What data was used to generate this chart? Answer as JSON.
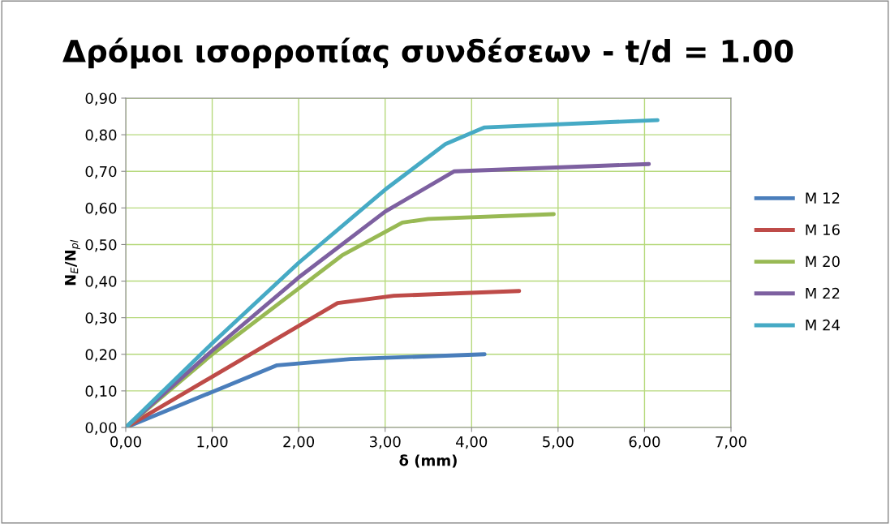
{
  "chart_data": {
    "type": "line",
    "title": "Δρόμοι ισορροπίας συνδέσεων - t/d = 1.00",
    "xlabel": "δ (mm)",
    "ylabel": "N$_{E}$/N$_{pl}$",
    "xlim": [
      0,
      7
    ],
    "ylim": [
      0,
      0.9
    ],
    "xticks": [
      {
        "value": 0,
        "label": "0,00"
      },
      {
        "value": 1,
        "label": "1,00"
      },
      {
        "value": 2,
        "label": "2,00"
      },
      {
        "value": 3,
        "label": "3,00"
      },
      {
        "value": 4,
        "label": "4,00"
      },
      {
        "value": 5,
        "label": "5,00"
      },
      {
        "value": 6,
        "label": "6,00"
      },
      {
        "value": 7,
        "label": "7,00"
      }
    ],
    "yticks": [
      {
        "value": 0,
        "label": "0,00"
      },
      {
        "value": 0.1,
        "label": "0,10"
      },
      {
        "value": 0.2,
        "label": "0,20"
      },
      {
        "value": 0.3,
        "label": "0,30"
      },
      {
        "value": 0.4,
        "label": "0,40"
      },
      {
        "value": 0.5,
        "label": "0,50"
      },
      {
        "value": 0.6,
        "label": "0,60"
      },
      {
        "value": 0.7,
        "label": "0,70"
      },
      {
        "value": 0.8,
        "label": "0,80"
      },
      {
        "value": 0.9,
        "label": "0,90"
      }
    ],
    "grid": true,
    "legend": "right",
    "marker": "none",
    "line_style": "solid",
    "series": [
      {
        "name": "M 12",
        "color": "#4a7ebb",
        "x": [
          0,
          1.75,
          2.6,
          4.15
        ],
        "values": [
          0,
          0.17,
          0.187,
          0.2
        ]
      },
      {
        "name": "M 16",
        "color": "#be4b48",
        "x": [
          0,
          2.45,
          3.1,
          4.55
        ],
        "values": [
          0,
          0.34,
          0.36,
          0.373
        ]
      },
      {
        "name": "M 20",
        "color": "#98b954",
        "x": [
          0,
          1,
          2,
          2.5,
          3.2,
          3.5,
          4.95
        ],
        "values": [
          0,
          0.2,
          0.38,
          0.47,
          0.56,
          0.57,
          0.583
        ]
      },
      {
        "name": "M 22",
        "color": "#7d60a0",
        "x": [
          0,
          1,
          2,
          3,
          3.8,
          6.05
        ],
        "values": [
          0,
          0.21,
          0.41,
          0.59,
          0.7,
          0.72
        ]
      },
      {
        "name": "M 24",
        "color": "#46aac5",
        "x": [
          0,
          1,
          2,
          3,
          3.7,
          4.15,
          6.15
        ],
        "values": [
          0,
          0.23,
          0.45,
          0.65,
          0.775,
          0.82,
          0.84
        ]
      }
    ]
  }
}
